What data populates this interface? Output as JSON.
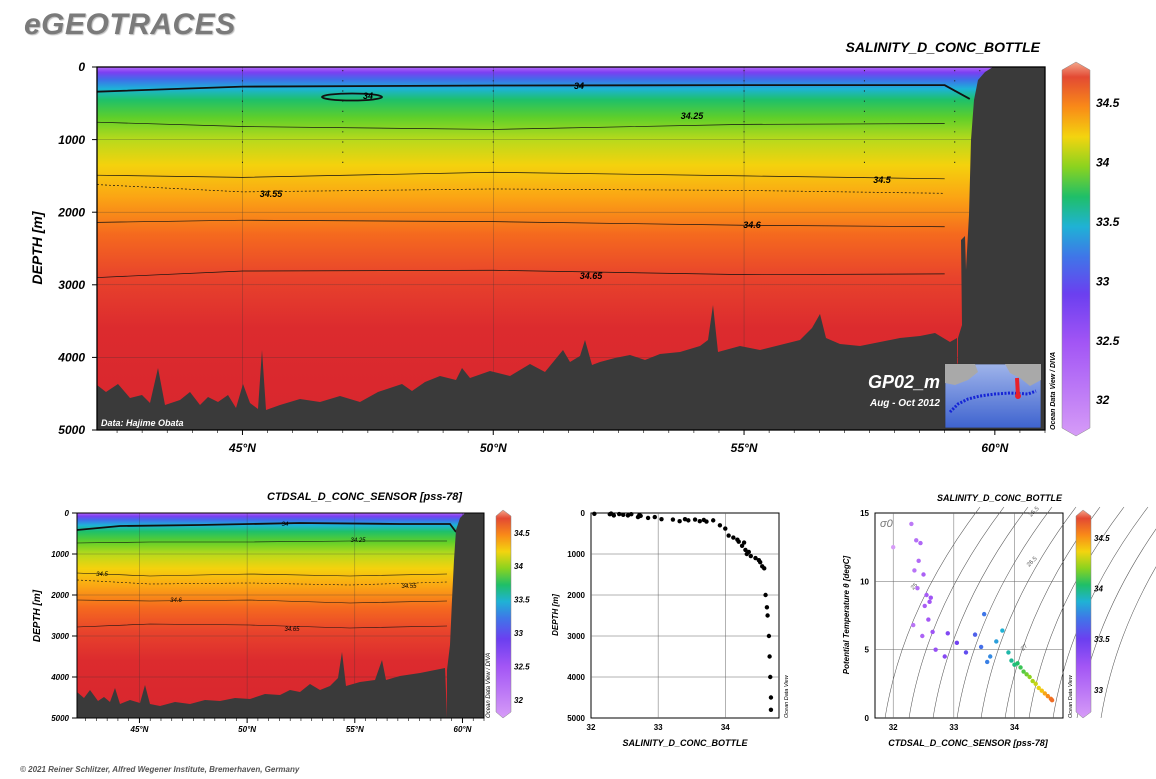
{
  "brand": "eGEOTRACES",
  "footer": "© 2021 Reiner Schlitzer, Alfred Wegener Institute, Bremerhaven, Germany",
  "colors": {
    "land": "#3a3a3a",
    "frame": "#000000",
    "brand": "#7a7a7a"
  },
  "main_section": {
    "title": "SALINITY_D_CONC_BOTTLE",
    "data_credit": "Data: Hajime Obata",
    "inset_title": "GP02_m",
    "inset_subtitle": "Aug - Oct 2012",
    "side_label": "Ocean Data View / DIVA",
    "colorbar_ticks": [
      "34.5",
      "34",
      "33.5",
      "33",
      "32.5",
      "32"
    ]
  },
  "bottom_left": {
    "title": "CTDSAL_D_CONC_SENSOR [pss-78]",
    "side_label": "Ocean Data View / DIVA",
    "colorbar_ticks": [
      "34.5",
      "34",
      "33.5",
      "33",
      "32.5",
      "32"
    ]
  },
  "bottom_mid": {
    "side_label": "Ocean Data View"
  },
  "bottom_right": {
    "title": "SALINITY_D_CONC_BOTTLE",
    "side_label": "Ocean Data View",
    "sigma_label": "σ0",
    "colorbar_ticks": [
      "34.5",
      "34",
      "33.5",
      "33"
    ]
  },
  "chart_data": [
    {
      "type": "heatmap",
      "title": "SALINITY_D_CONC_BOTTLE",
      "xlabel": "",
      "ylabel": "DEPTH [m]",
      "x_tick_labels": [
        "45°N",
        "50°N",
        "55°N",
        "60°N"
      ],
      "x_ticks": [
        45,
        50,
        55,
        60
      ],
      "xlim": [
        42.1,
        61
      ],
      "y_tick_labels": [
        "0",
        "1000",
        "2000",
        "3000",
        "4000",
        "5000"
      ],
      "ylim": [
        5000,
        0
      ],
      "colorbar_range": [
        31.7,
        34.85
      ],
      "contour_labels": [
        "34",
        "34",
        "34.25",
        "34.5",
        "34.55",
        "34.6",
        "34.65"
      ],
      "contours": [
        {
          "value": 34,
          "depth_at": [
            [
              42.1,
              340
            ],
            [
              45,
              270
            ],
            [
              50,
              255
            ],
            [
              55,
              250
            ],
            [
              59,
              250
            ],
            [
              59.5,
              440
            ]
          ]
        },
        {
          "value": 34.25,
          "depth_at": [
            [
              42.1,
              760
            ],
            [
              45,
              820
            ],
            [
              50,
              860
            ],
            [
              55,
              790
            ],
            [
              59,
              780
            ]
          ]
        },
        {
          "value": 34.5,
          "depth_at": [
            [
              42.1,
              1490
            ],
            [
              45,
              1520
            ],
            [
              50,
              1450
            ],
            [
              55,
              1500
            ],
            [
              59,
              1540
            ]
          ]
        },
        {
          "value": 34.55,
          "depth_at": [
            [
              42.1,
              1620
            ],
            [
              45,
              1720
            ],
            [
              50,
              1680
            ],
            [
              55,
              1700
            ],
            [
              59,
              1740
            ]
          ]
        },
        {
          "value": 34.6,
          "depth_at": [
            [
              42.1,
              2140
            ],
            [
              45,
              2110
            ],
            [
              50,
              2130
            ],
            [
              55,
              2180
            ],
            [
              59,
              2200
            ]
          ]
        },
        {
          "value": 34.65,
          "depth_at": [
            [
              42.1,
              2900
            ],
            [
              45,
              2810
            ],
            [
              50,
              2800
            ],
            [
              55,
              2860
            ],
            [
              59,
              2850
            ]
          ]
        }
      ],
      "grid": true
    },
    {
      "type": "heatmap",
      "title": "CTDSAL_D_CONC_SENSOR [pss-78]",
      "xlabel": "",
      "ylabel": "DEPTH [m]",
      "x_tick_labels": [
        "45°N",
        "50°N",
        "55°N",
        "60°N"
      ],
      "x_ticks": [
        45,
        50,
        55,
        60
      ],
      "xlim": [
        42.1,
        61
      ],
      "y_tick_labels": [
        "0",
        "1000",
        "2000",
        "3000",
        "4000",
        "5000"
      ],
      "ylim": [
        5000,
        0
      ],
      "colorbar_range": [
        31.7,
        34.85
      ],
      "contour_labels": [
        "34",
        "34.25",
        "34.5",
        "34.55",
        "34.6",
        "34.65"
      ],
      "grid": true
    },
    {
      "type": "scatter",
      "title": "",
      "xlabel": "SALINITY_D_CONC_BOTTLE",
      "ylabel": "DEPTH [m]",
      "x_tick_labels": [
        "32",
        "33",
        "34"
      ],
      "x_ticks": [
        32,
        33,
        34
      ],
      "y_tick_labels": [
        "0",
        "1000",
        "2000",
        "3000",
        "4000",
        "5000"
      ],
      "y_ticks": [
        0,
        1000,
        2000,
        3000,
        4000,
        5000
      ],
      "xlim": [
        32,
        34.8
      ],
      "ylim": [
        5000,
        0
      ],
      "grid": true,
      "x": [
        32.05,
        32.28,
        32.3,
        32.34,
        32.42,
        32.48,
        32.55,
        32.6,
        32.7,
        32.72,
        32.74,
        32.85,
        32.95,
        33.05,
        33.22,
        33.32,
        33.4,
        33.45,
        33.55,
        33.62,
        33.68,
        33.72,
        33.82,
        33.92,
        34.0,
        34.05,
        34.12,
        34.18,
        34.2,
        34.25,
        34.28,
        34.3,
        34.32,
        34.35,
        34.38,
        34.45,
        34.5,
        34.52,
        34.55,
        34.58,
        34.6,
        34.62,
        34.63,
        34.65,
        34.66,
        34.67,
        34.68,
        34.68
      ],
      "y": [
        20,
        30,
        15,
        60,
        25,
        45,
        60,
        30,
        100,
        50,
        70,
        120,
        100,
        150,
        160,
        200,
        150,
        180,
        160,
        200,
        170,
        210,
        180,
        300,
        380,
        550,
        600,
        650,
        700,
        800,
        720,
        900,
        1000,
        950,
        1050,
        1100,
        1150,
        1200,
        1300,
        1350,
        2000,
        2300,
        2500,
        3000,
        3500,
        4000,
        4500,
        4800
      ],
      "point_color": "#000000"
    },
    {
      "type": "scatter",
      "title": "SALINITY_D_CONC_BOTTLE",
      "xlabel": "CTDSAL_D_CONC_SENSOR [pss-78]",
      "ylabel": "Potential Temperature θ [degC]",
      "x_tick_labels": [
        "32",
        "33",
        "34"
      ],
      "x_ticks": [
        32,
        33,
        34
      ],
      "y_tick_labels": [
        "0",
        "5",
        "10",
        "15"
      ],
      "y_ticks": [
        0,
        5,
        10,
        15
      ],
      "xlim": [
        31.7,
        34.8
      ],
      "ylim": [
        0,
        15
      ],
      "grid": true,
      "isopycnal_labels": [
        "25",
        "25.5",
        "26.5",
        "27"
      ],
      "x": [
        32.0,
        32.3,
        32.38,
        32.42,
        32.45,
        32.5,
        32.55,
        32.6,
        32.35,
        32.4,
        32.52,
        32.58,
        32.65,
        32.33,
        32.48,
        32.62,
        32.7,
        32.85,
        32.9,
        33.05,
        33.2,
        33.35,
        33.45,
        33.5,
        33.6,
        33.7,
        33.8,
        33.55,
        33.9,
        33.95,
        34.0,
        34.05,
        34.1,
        34.15,
        34.2,
        34.25,
        34.3,
        34.35,
        34.4,
        34.45,
        34.5,
        34.55,
        34.6,
        34.62
      ],
      "y": [
        12.5,
        14.2,
        13.0,
        11.5,
        12.8,
        10.5,
        9.0,
        8.5,
        10.8,
        9.5,
        8.2,
        7.2,
        6.3,
        6.8,
        6.0,
        8.8,
        5.0,
        4.5,
        6.2,
        5.5,
        4.8,
        6.1,
        5.2,
        7.6,
        4.5,
        5.6,
        6.4,
        4.1,
        4.8,
        4.2,
        3.9,
        4.0,
        3.7,
        3.4,
        3.2,
        3.0,
        2.7,
        2.5,
        2.2,
        2.0,
        1.8,
        1.6,
        1.4,
        1.3
      ]
    }
  ]
}
